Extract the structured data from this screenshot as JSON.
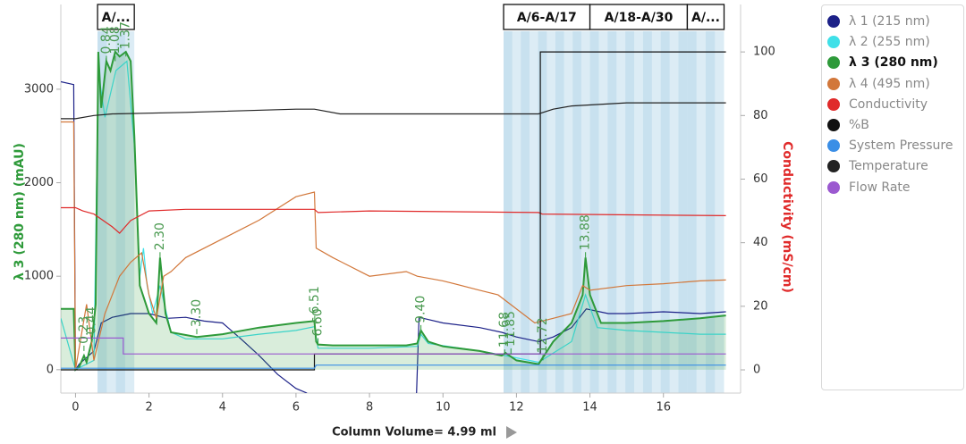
{
  "chart_data": {
    "type": "line",
    "y_label": "λ 3 (280 nm) (mAU)",
    "y2_label": "Conductivity (mS/cm)",
    "x_label": "Column Volume",
    "x_unit_note": "= 4.99 ml",
    "xlim": [
      -0.4,
      18.1
    ],
    "ylim": [
      -250,
      3620
    ],
    "y2lim": [
      -7.3,
      106.5
    ],
    "xticks": [
      0,
      2,
      4,
      6,
      8,
      10,
      12,
      14,
      16
    ],
    "yticks": [
      0,
      1000,
      2000,
      3000
    ],
    "y2ticks": [
      0,
      20,
      40,
      60,
      80,
      100
    ],
    "fractions": [
      {
        "label": "A/...",
        "start": 0.6,
        "end": 1.6
      },
      {
        "label": "A/6-A/17",
        "start": 11.65,
        "end": 14.0
      },
      {
        "label": "A/18-A/30",
        "start": 14.0,
        "end": 16.65
      },
      {
        "label": "A/...",
        "start": 16.65,
        "end": 17.65
      }
    ],
    "series": [
      {
        "name": "λ 1 (215 nm)",
        "color": "#1c2188",
        "x": [
          -0.4,
          -0.05,
          0,
          0.1,
          0.5,
          0.7,
          1.0,
          1.5,
          2,
          2.5,
          3,
          3.5,
          4,
          4.5,
          5,
          5.5,
          6,
          6.3,
          7,
          9.28,
          9.35,
          10,
          11,
          11.6,
          12,
          12.6,
          13,
          13.5,
          13.9,
          14.5,
          15,
          16,
          17,
          17.7
        ],
        "values": [
          3080,
          3050,
          0,
          60,
          200,
          500,
          560,
          600,
          600,
          550,
          560,
          520,
          500,
          330,
          150,
          -50,
          -200,
          -250,
          null,
          -250,
          560,
          500,
          450,
          400,
          350,
          300,
          350,
          450,
          650,
          600,
          600,
          620,
          600,
          620
        ]
      },
      {
        "name": "λ 2 (255 nm)",
        "color": "#3fe0e8",
        "x": [
          -0.4,
          0,
          0.5,
          0.62,
          0.8,
          1.1,
          1.4,
          1.6,
          1.75,
          1.85,
          1.95,
          2.1,
          2.3,
          2.6,
          3,
          4,
          5,
          6,
          6.5,
          6.6,
          8,
          9.3,
          9.4,
          9.6,
          11,
          11.7,
          12.6,
          13.5,
          13.88,
          14.2,
          15,
          16,
          17,
          17.7
        ],
        "values": [
          550,
          0,
          100,
          3200,
          2700,
          3200,
          3300,
          2400,
          1000,
          1300,
          900,
          600,
          900,
          400,
          330,
          330,
          380,
          420,
          460,
          230,
          230,
          250,
          380,
          280,
          200,
          150,
          80,
          300,
          800,
          450,
          420,
          400,
          380,
          380
        ]
      },
      {
        "name": "λ 3 (280 nm)",
        "color": "#2e9a3a",
        "fill": true,
        "bold": true,
        "x": [
          -0.4,
          -0.05,
          0,
          0.1,
          0.23,
          0.3,
          0.44,
          0.55,
          0.62,
          0.7,
          0.84,
          0.95,
          1.08,
          1.2,
          1.37,
          1.5,
          1.6,
          1.75,
          2.0,
          2.2,
          2.3,
          2.45,
          2.6,
          3.3,
          4,
          5,
          6,
          6.5,
          6.55,
          6.6,
          7,
          8,
          9,
          9.3,
          9.4,
          9.6,
          10,
          11,
          11.6,
          11.7,
          12.0,
          12.6,
          13.0,
          13.5,
          13.8,
          13.88,
          14.0,
          14.3,
          15,
          16,
          17,
          17.7
        ],
        "values": [
          650,
          650,
          0,
          30,
          150,
          80,
          300,
          700,
          3400,
          2800,
          3300,
          3200,
          3400,
          3350,
          3400,
          3300,
          2500,
          900,
          600,
          500,
          1200,
          600,
          400,
          350,
          380,
          450,
          500,
          520,
          300,
          270,
          260,
          260,
          260,
          280,
          420,
          300,
          250,
          200,
          150,
          180,
          100,
          60,
          300,
          500,
          800,
          1200,
          800,
          500,
          500,
          520,
          550,
          580
        ]
      },
      {
        "name": "λ 4 (495 nm)",
        "color": "#d2773a",
        "x": [
          -0.4,
          -0.05,
          0,
          0.3,
          0.5,
          0.8,
          1.2,
          1.5,
          1.8,
          2.0,
          2.2,
          2.4,
          2.6,
          3,
          4,
          5,
          6,
          6.5,
          6.55,
          7,
          8,
          9,
          9.3,
          10,
          11,
          11.5,
          12.5,
          13,
          13.5,
          13.8,
          14,
          15,
          16,
          17,
          17.7
        ],
        "values": [
          2650,
          2650,
          0,
          700,
          100,
          600,
          1000,
          1150,
          1250,
          800,
          550,
          1000,
          1050,
          1200,
          1400,
          1600,
          1850,
          1900,
          1300,
          1200,
          1000,
          1050,
          1000,
          950,
          850,
          800,
          500,
          550,
          600,
          900,
          850,
          900,
          920,
          950,
          960
        ]
      },
      {
        "name": "Conductivity",
        "color": "#e02a2a",
        "axis": "y2",
        "x": [
          -0.4,
          0,
          0.2,
          0.5,
          1.0,
          1.2,
          1.5,
          2.0,
          3,
          6.5,
          6.6,
          8,
          12.6,
          12.7,
          17.7
        ],
        "values": [
          51,
          51,
          50,
          49,
          45,
          43,
          47,
          50,
          50.5,
          50.5,
          49.5,
          50,
          49.5,
          49,
          48.5
        ]
      },
      {
        "name": "%B",
        "color": "#111111",
        "axis": "y2",
        "x": [
          -0.4,
          6.5,
          6.5,
          12.65,
          12.65,
          17.7
        ],
        "values": [
          0,
          0,
          5,
          5,
          100,
          100
        ]
      },
      {
        "name": "System Pressure",
        "color": "#3a8ee6",
        "axis": "y2",
        "x": [
          -0.4,
          0,
          6.5,
          6.55,
          17.7
        ],
        "values": [
          0.5,
          0.5,
          0.5,
          1.5,
          1.5
        ]
      },
      {
        "name": "Temperature",
        "color": "#222222",
        "axis": "y2",
        "x": [
          -0.4,
          0,
          0.5,
          1,
          3,
          6,
          6.5,
          7.2,
          10,
          12.6,
          13,
          13.5,
          15,
          17.7
        ],
        "values": [
          79,
          79,
          80,
          80.5,
          81,
          82,
          82,
          80.5,
          80.5,
          80.5,
          82,
          83,
          84,
          84
        ]
      },
      {
        "name": "Flow Rate",
        "color": "#9b59d0",
        "axis": "y2",
        "x": [
          -0.4,
          1.3,
          1.3,
          17.7
        ],
        "values": [
          10,
          10,
          5,
          5
        ]
      }
    ],
    "peaks": [
      {
        "label": "0.23",
        "x": 0.23,
        "y": 200
      },
      {
        "label": "0.44",
        "x": 0.44,
        "y": 300
      },
      {
        "label": "0.84",
        "x": 0.84,
        "y": 3300
      },
      {
        "label": "1.08",
        "x": 1.08,
        "y": 3300
      },
      {
        "label": "1.37",
        "x": 1.37,
        "y": 3350
      },
      {
        "label": "2.30",
        "x": 2.3,
        "y": 1200
      },
      {
        "label": "3.30",
        "x": 3.3,
        "y": 380
      },
      {
        "label": "6.51",
        "x": 6.51,
        "y": 520
      },
      {
        "label": "6.60",
        "x": 6.6,
        "y": 280
      },
      {
        "label": "9.40",
        "x": 9.4,
        "y": 420
      },
      {
        "label": "11.68",
        "x": 11.68,
        "y": 160
      },
      {
        "label": "11.85",
        "x": 11.85,
        "y": 170
      },
      {
        "label": "12.72",
        "x": 12.72,
        "y": 100
      },
      {
        "label": "13.88",
        "x": 13.88,
        "y": 1200
      }
    ]
  }
}
